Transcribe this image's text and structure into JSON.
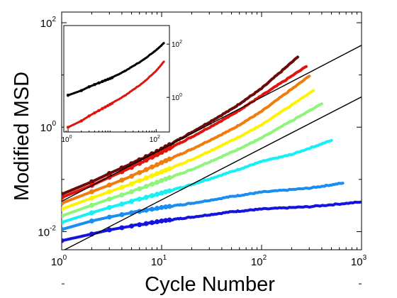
{
  "chart_data": [
    {
      "type": "line",
      "xlabel": "Cycle Number",
      "ylabel": "Modified MSD",
      "xscale": "log",
      "yscale": "log",
      "xlim": [
        1,
        1000
      ],
      "ylim": [
        0.0045,
        160
      ],
      "xticks": [
        {
          "base": "10",
          "exp": "0"
        },
        {
          "base": "10",
          "exp": "1"
        },
        {
          "base": "10",
          "exp": "2"
        },
        {
          "base": "10",
          "exp": "3"
        }
      ],
      "yticks": [
        {
          "base": "10",
          "exp": "-2"
        },
        {
          "base": "10",
          "exp": "0"
        },
        {
          "base": "10",
          "exp": "2"
        }
      ],
      "grid": false,
      "series": [
        {
          "color": "#6b0a0a",
          "x": [
            1,
            2,
            3,
            5,
            10,
            20,
            50,
            100,
            230
          ],
          "y": [
            0.052,
            0.09,
            0.13,
            0.2,
            0.38,
            0.8,
            2.2,
            5.5,
            22
          ]
        },
        {
          "color": "#e0140e",
          "x": [
            1,
            2,
            3,
            5,
            10,
            20,
            50,
            100,
            280
          ],
          "y": [
            0.045,
            0.077,
            0.11,
            0.17,
            0.33,
            0.65,
            1.7,
            4.0,
            14.5
          ]
        },
        {
          "color": "#f07c0c",
          "x": [
            1,
            2,
            3,
            5,
            10,
            20,
            50,
            100,
            300
          ],
          "y": [
            0.035,
            0.058,
            0.078,
            0.115,
            0.21,
            0.38,
            0.9,
            2.0,
            9.5
          ]
        },
        {
          "color": "#fff200",
          "x": [
            1,
            2,
            3,
            5,
            10,
            20,
            50,
            100,
            330
          ],
          "y": [
            0.027,
            0.044,
            0.058,
            0.082,
            0.14,
            0.24,
            0.55,
            1.1,
            5.0
          ]
        },
        {
          "color": "#8cf57a",
          "x": [
            1,
            2,
            3,
            5,
            10,
            20,
            50,
            100,
            400
          ],
          "y": [
            0.02,
            0.032,
            0.042,
            0.058,
            0.095,
            0.155,
            0.33,
            0.62,
            2.8
          ]
        },
        {
          "color": "#14f0f5",
          "x": [
            1,
            2,
            3,
            5,
            10,
            20,
            50,
            100,
            200,
            500
          ],
          "y": [
            0.015,
            0.023,
            0.029,
            0.038,
            0.055,
            0.08,
            0.14,
            0.22,
            0.3,
            0.56
          ]
        },
        {
          "color": "#1a8ef0",
          "x": [
            1,
            2,
            3,
            5,
            10,
            20,
            50,
            100,
            300,
            650
          ],
          "y": [
            0.011,
            0.016,
            0.019,
            0.023,
            0.029,
            0.035,
            0.047,
            0.057,
            0.068,
            0.085
          ]
        },
        {
          "color": "#1414e0",
          "x": [
            1,
            2,
            3,
            5,
            10,
            20,
            50,
            100,
            300,
            1000
          ],
          "y": [
            0.0067,
            0.009,
            0.0108,
            0.0128,
            0.016,
            0.019,
            0.024,
            0.027,
            0.03,
            0.037
          ]
        }
      ],
      "reference_lines": [
        {
          "color": "#000000",
          "x": [
            1,
            1000
          ],
          "y": [
            0.038,
            37
          ]
        },
        {
          "color": "#000000",
          "x": [
            1,
            1000
          ],
          "y": [
            0.0042,
            3.8
          ]
        }
      ]
    },
    {
      "type": "line",
      "role": "inset",
      "xscale": "log",
      "yscale": "log",
      "xlim": [
        0.8,
        200
      ],
      "ylim": [
        0.05,
        500
      ],
      "xticks": [
        {
          "base": "10",
          "exp": "0"
        },
        {
          "base": "10",
          "exp": "2"
        }
      ],
      "yticks": [
        {
          "base": "10",
          "exp": "0"
        },
        {
          "base": "10",
          "exp": "2"
        }
      ],
      "series": [
        {
          "color": "#000000",
          "x": [
            1,
            2,
            3,
            5,
            10,
            20,
            50,
            100,
            150
          ],
          "y": [
            1.2,
            1.8,
            2.5,
            3.5,
            5.5,
            10,
            25,
            60,
            110
          ]
        },
        {
          "color": "#e0140e",
          "x": [
            1,
            2,
            3,
            5,
            10,
            20,
            50,
            100,
            150
          ],
          "y": [
            0.075,
            0.13,
            0.2,
            0.32,
            0.6,
            1.2,
            3.5,
            10,
            22
          ]
        }
      ]
    }
  ]
}
